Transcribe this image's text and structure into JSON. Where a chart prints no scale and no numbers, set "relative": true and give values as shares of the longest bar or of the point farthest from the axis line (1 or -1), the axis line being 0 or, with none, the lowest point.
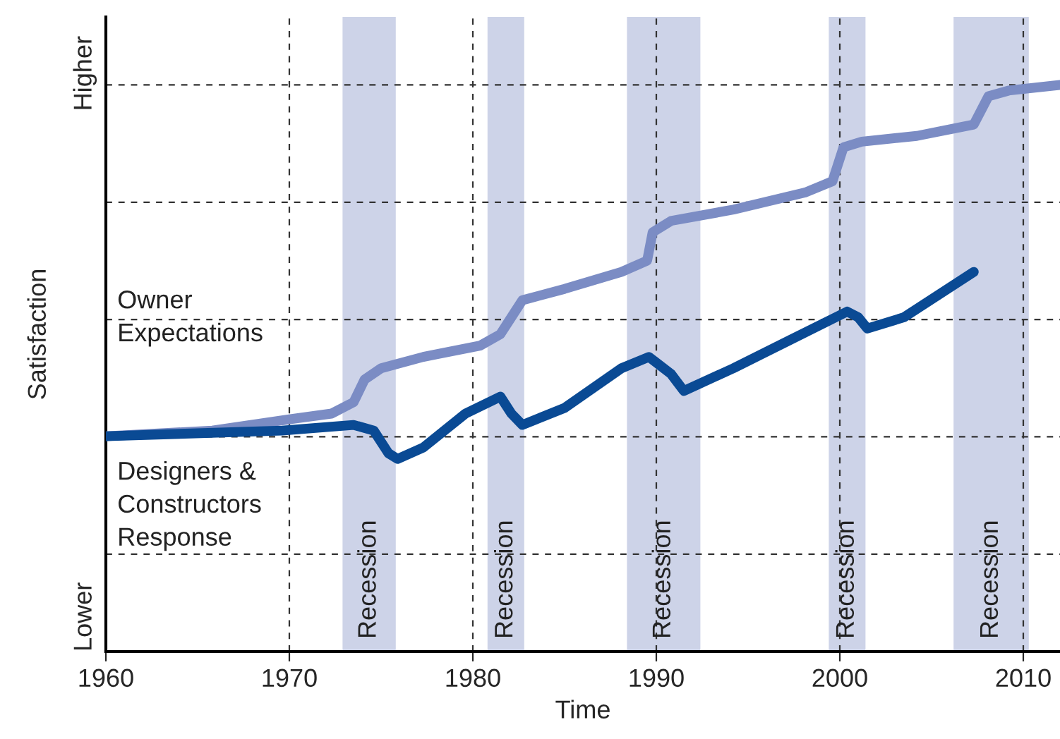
{
  "chart_data": {
    "type": "line",
    "relative": true,
    "xlabel": "Time",
    "ylabel": "Satisfaction",
    "x": [
      1960,
      1965.8,
      1970,
      1972.3,
      1973.5,
      1974.1,
      1975,
      1977.3,
      1980.4,
      1981.5,
      1982.1,
      1982.7,
      1985,
      1988.1,
      1989.5,
      1989.8,
      1990.8,
      1994.2,
      1998.1,
      1999.6,
      2000.2,
      2001.2,
      2004.2,
      2007.3,
      2008.1,
      2009.2,
      2012
    ],
    "xlim": [
      1960,
      2012
    ],
    "xticks": [
      1960,
      1970,
      1980,
      1990,
      2000,
      2010
    ],
    "series": [
      {
        "name": "Owner\nExpectations",
        "color": "#7b8cc4",
        "values": [
          0.38,
          0.39,
          0.41,
          0.42,
          0.44,
          0.48,
          0.5,
          0.52,
          0.54,
          0.56,
          0.59,
          0.62,
          0.64,
          0.67,
          0.69,
          0.74,
          0.76,
          0.78,
          0.81,
          0.83,
          0.89,
          0.9,
          0.91,
          0.93,
          0.98,
          0.99,
          1.0
        ]
      },
      {
        "name": "Designers &\nConstructors\nResponse",
        "color": "#0a4a94",
        "x": [
          1960,
          1969.6,
          1973.5,
          1974.6,
          1975.4,
          1975.9,
          1977.3,
          1979.6,
          1981.5,
          1982.1,
          1982.7,
          1985,
          1988.1,
          1989.6,
          1990.8,
          1991.5,
          1994.2,
          1997.3,
          2000.4,
          2001,
          2001.5,
          2003.5,
          2007.3
        ],
        "values": [
          0.38,
          0.39,
          0.4,
          0.39,
          0.35,
          0.34,
          0.36,
          0.42,
          0.45,
          0.42,
          0.4,
          0.43,
          0.5,
          0.52,
          0.49,
          0.46,
          0.5,
          0.55,
          0.6,
          0.59,
          0.57,
          0.59,
          0.67
        ]
      }
    ],
    "bands": [
      {
        "axis": "x",
        "from": 1972.9,
        "to": 1975.8,
        "label": "Recession",
        "color": "#cdd3e8"
      },
      {
        "axis": "x",
        "from": 1980.8,
        "to": 1982.8,
        "label": "Recession",
        "color": "#cdd3e8"
      },
      {
        "axis": "x",
        "from": 1988.4,
        "to": 1992.4,
        "label": "Recession",
        "color": "#cdd3e8"
      },
      {
        "axis": "x",
        "from": 1999.4,
        "to": 2001.4,
        "label": "Recession",
        "color": "#cdd3e8"
      },
      {
        "axis": "x",
        "from": 2006.2,
        "to": 2010.3,
        "label": "Recession",
        "color": "#cdd3e8"
      }
    ],
    "annotations": [
      "Higher",
      "Lower"
    ],
    "grid": true,
    "line_style": "solid",
    "tick_labels": "x",
    "legend": false
  }
}
